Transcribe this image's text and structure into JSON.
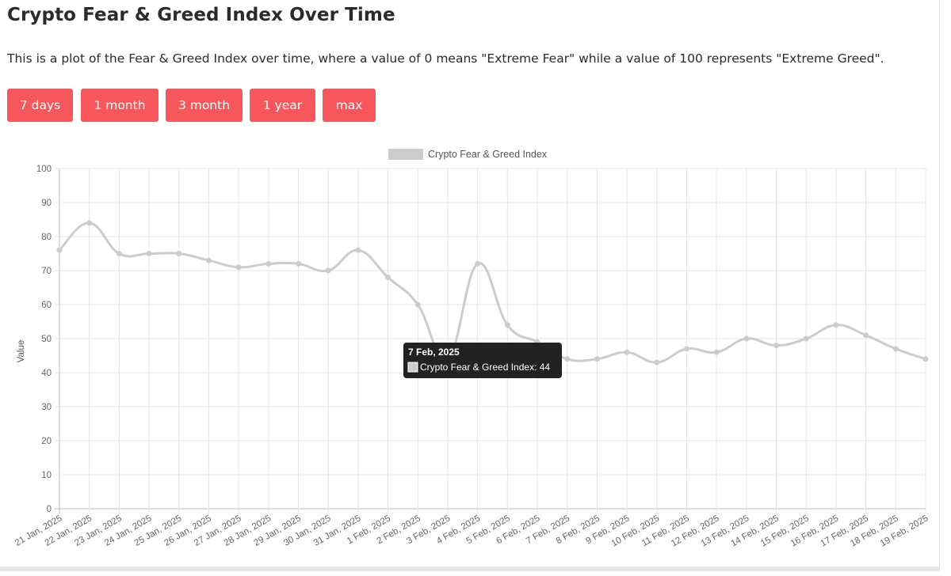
{
  "page": {
    "title": "Crypto Fear & Greed Index Over Time",
    "description": "This is a plot of the Fear & Greed Index over time, where a value of 0 means \"Extreme Fear\" while a value of 100 represents \"Extreme Greed\"."
  },
  "range_buttons": [
    {
      "label": "7 days"
    },
    {
      "label": "1 month"
    },
    {
      "label": "3 month"
    },
    {
      "label": "1 year"
    },
    {
      "label": "max"
    }
  ],
  "colors": {
    "button": "#f5575d",
    "series": "#cccccc",
    "grid": "#e5e5e5",
    "tooltip_bg": "#222222"
  },
  "chart_data": {
    "type": "line",
    "title": "",
    "legend": {
      "position": "top-center"
    },
    "xlabel": "",
    "ylabel": "Value",
    "ylim": [
      0,
      100
    ],
    "y_ticks": [
      0,
      10,
      20,
      30,
      40,
      50,
      60,
      70,
      80,
      90,
      100
    ],
    "grid": true,
    "categories": [
      "21 Jan, 2025",
      "22 Jan, 2025",
      "23 Jan, 2025",
      "24 Jan, 2025",
      "25 Jan, 2025",
      "26 Jan, 2025",
      "27 Jan, 2025",
      "28 Jan, 2025",
      "29 Jan, 2025",
      "30 Jan, 2025",
      "31 Jan, 2025",
      "1 Feb, 2025",
      "2 Feb, 2025",
      "3 Feb, 2025",
      "4 Feb, 2025",
      "5 Feb, 2025",
      "6 Feb, 2025",
      "7 Feb, 2025",
      "8 Feb, 2025",
      "9 Feb, 2025",
      "10 Feb, 2025",
      "11 Feb, 2025",
      "12 Feb, 2025",
      "13 Feb, 2025",
      "14 Feb, 2025",
      "15 Feb, 2025",
      "16 Feb, 2025",
      "17 Feb, 2025",
      "18 Feb, 2025",
      "19 Feb, 2025"
    ],
    "series": [
      {
        "name": "Crypto Fear & Greed Index",
        "values": [
          76,
          84,
          75,
          75,
          75,
          73,
          71,
          72,
          72,
          70,
          76,
          68,
          60,
          44,
          72,
          54,
          49,
          44,
          44,
          46,
          43,
          47,
          46,
          50,
          48,
          50,
          54,
          51,
          47,
          44
        ]
      }
    ],
    "tooltip": {
      "title": "7 Feb, 2025",
      "label": "Crypto Fear & Greed Index: 44"
    }
  }
}
